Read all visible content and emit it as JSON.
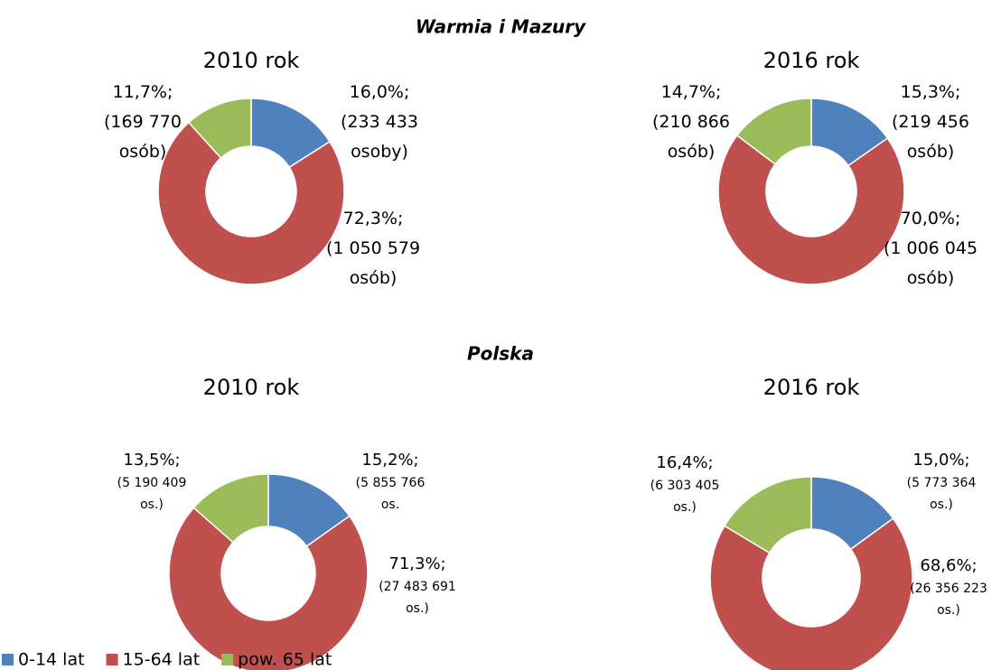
{
  "headings": [
    "Warmia i Mazury",
    "Polska"
  ],
  "chart_data": [
    {
      "type": "donut",
      "title": "2010 rok",
      "categories": [
        "0-14 lat",
        "15-64 lat",
        "pow. 65 lat"
      ],
      "colors": [
        "#4f81bd",
        "#c0504d",
        "#9bbb59"
      ],
      "values": [
        16.0,
        72.3,
        11.7
      ],
      "value_labels": [
        "16,0%;",
        "72,3%;",
        "11,7%;"
      ],
      "counts": [
        233433,
        1050579,
        169770
      ],
      "count_labels": [
        "(233 433 osoby)",
        "(1 050 579 osób)",
        "(169 770 osób)"
      ]
    },
    {
      "type": "donut",
      "title": "2016 rok",
      "categories": [
        "0-14 lat",
        "15-64 lat",
        "pow. 65 lat"
      ],
      "colors": [
        "#4f81bd",
        "#c0504d",
        "#9bbb59"
      ],
      "values": [
        15.3,
        70.0,
        14.7
      ],
      "value_labels": [
        "15,3%;",
        "70,0%;",
        "14,7%;"
      ],
      "counts": [
        219456,
        1006045,
        210866
      ],
      "count_labels": [
        "(219 456 osób)",
        "(1 006 045 osób)",
        "(210 866 osób)"
      ]
    },
    {
      "type": "donut",
      "title": "2010 rok",
      "categories": [
        "0-14 lat",
        "15-64 lat",
        "pow. 65 lat"
      ],
      "colors": [
        "#4f81bd",
        "#c0504d",
        "#9bbb59"
      ],
      "values": [
        15.2,
        71.3,
        13.5
      ],
      "value_labels": [
        "15,2%;",
        "71,3%;",
        "13,5%;"
      ],
      "counts": [
        5855766,
        27483691,
        5190409
      ],
      "count_labels": [
        "(5 855 766 os.",
        "(27 483 691 os.)",
        "(5 190 409 os.)"
      ]
    },
    {
      "type": "donut",
      "title": "2016 rok",
      "categories": [
        "0-14 lat",
        "15-64 lat",
        "pow. 65 lat"
      ],
      "colors": [
        "#4f81bd",
        "#c0504d",
        "#9bbb59"
      ],
      "values": [
        15.0,
        68.6,
        16.4
      ],
      "value_labels": [
        "15,0%;",
        "68,6%;",
        "16,4%;"
      ],
      "counts": [
        5773364,
        26356223,
        6303405
      ],
      "count_labels": [
        "(5 773 364 os.)",
        "(26 356 223 os.)",
        "(6 303 405 os.)"
      ]
    }
  ]
}
